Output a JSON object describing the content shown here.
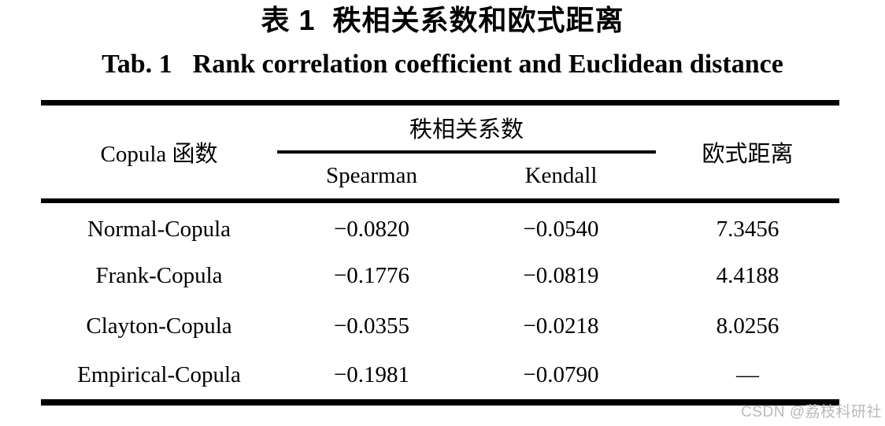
{
  "titles": {
    "zh_prefix": "表 1",
    "zh_main": "秩相关系数和欧式距离",
    "en_prefix": "Tab. 1",
    "en_main": "Rank correlation coefficient and Euclidean distance"
  },
  "table": {
    "copula_header": "Copula 函数",
    "rank_group_header": "秩相关系数",
    "euclidean_header": "欧式距离",
    "subheaders": {
      "spearman": "Spearman",
      "kendall": "Kendall"
    },
    "rows": [
      {
        "name": "Normal-Copula",
        "spearman": "−0.0820",
        "kendall": "−0.0540",
        "euclidean": "7.3456"
      },
      {
        "name": "Frank-Copula",
        "spearman": "−0.1776",
        "kendall": "−0.0819",
        "euclidean": "4.4188"
      },
      {
        "name": "Clayton-Copula",
        "spearman": "−0.0355",
        "kendall": "−0.0218",
        "euclidean": "8.0256"
      },
      {
        "name": "Empirical-Copula",
        "spearman": "−0.1981",
        "kendall": "−0.0790",
        "euclidean": "—"
      }
    ]
  },
  "watermark": {
    "text": "CSDN @荔枝科研社",
    "color": "#b9b9b9"
  },
  "colors": {
    "rule": "#000000",
    "text": "#000000",
    "background": "#ffffff"
  }
}
